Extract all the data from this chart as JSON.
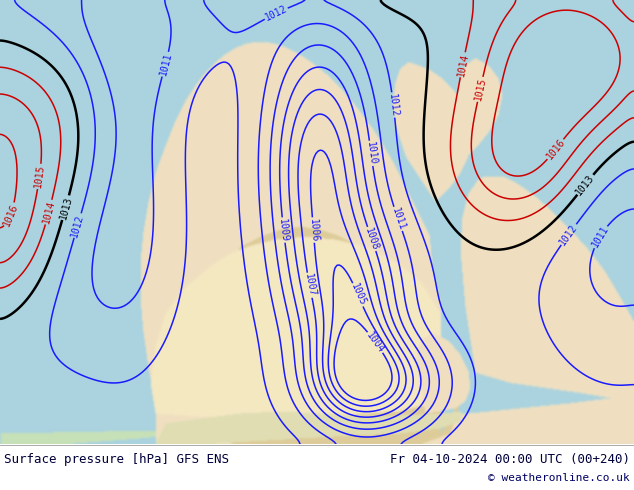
{
  "title_left": "Surface pressure [hPa] GFS ENS",
  "title_right": "Fr 04-10-2024 00:00 UTC (00+240)",
  "copyright": "© weatheronline.co.uk",
  "sea_color": [
    0.667,
    0.827,
    0.875
  ],
  "land_color_base": [
    0.941,
    0.878,
    0.753
  ],
  "land_color_green": [
    0.78,
    0.88,
    0.72
  ],
  "land_color_highland": [
    0.87,
    0.8,
    0.6
  ],
  "footer_text_color": "#00003a",
  "footer_font_size": 9,
  "blue_color": "#1a1aff",
  "red_color": "#cc0000",
  "black_color": "#000000",
  "contour_lw_thin": 1.1,
  "contour_lw_thick": 1.8
}
